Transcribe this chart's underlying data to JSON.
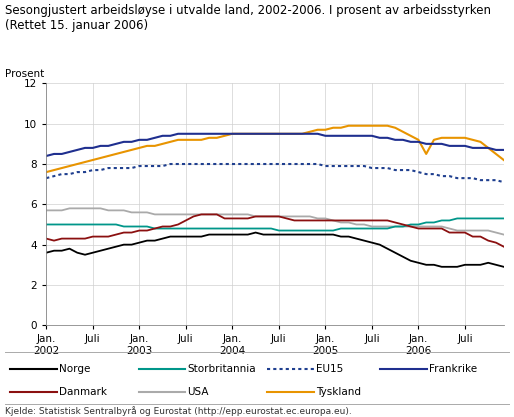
{
  "title": "Sesongjustert arbeidsløyse i utvalde land, 2002-2006. I prosent av arbeidsstyrken",
  "subtitle": "(Rettet 15. januar 2006)",
  "ylabel": "Prosent",
  "source": "Kjelde: Statistisk Sentralbyrå og Eurostat (http://epp.eurostat.ec.europa.eu).",
  "ylim": [
    0,
    12
  ],
  "yticks": [
    0,
    2,
    4,
    6,
    8,
    10,
    12
  ],
  "series": {
    "Norge": [
      3.6,
      3.7,
      3.7,
      3.8,
      3.6,
      3.5,
      3.6,
      3.7,
      3.8,
      3.9,
      4.0,
      4.0,
      4.1,
      4.2,
      4.2,
      4.3,
      4.4,
      4.4,
      4.4,
      4.4,
      4.4,
      4.5,
      4.5,
      4.5,
      4.5,
      4.5,
      4.5,
      4.6,
      4.5,
      4.5,
      4.5,
      4.5,
      4.5,
      4.5,
      4.5,
      4.5,
      4.5,
      4.5,
      4.4,
      4.4,
      4.3,
      4.2,
      4.1,
      4.0,
      3.8,
      3.6,
      3.4,
      3.2,
      3.1,
      3.0,
      3.0,
      2.9,
      2.9,
      2.9,
      3.0,
      3.0,
      3.0,
      3.1,
      3.0,
      2.9
    ],
    "Storbritannia": [
      5.0,
      5.0,
      5.0,
      5.0,
      5.0,
      5.0,
      5.0,
      5.0,
      5.0,
      5.0,
      4.9,
      4.9,
      4.9,
      4.9,
      4.8,
      4.8,
      4.8,
      4.8,
      4.8,
      4.8,
      4.8,
      4.8,
      4.8,
      4.8,
      4.8,
      4.8,
      4.8,
      4.8,
      4.8,
      4.8,
      4.7,
      4.7,
      4.7,
      4.7,
      4.7,
      4.7,
      4.7,
      4.7,
      4.8,
      4.8,
      4.8,
      4.8,
      4.8,
      4.8,
      4.8,
      4.9,
      4.9,
      5.0,
      5.0,
      5.1,
      5.1,
      5.2,
      5.2,
      5.3,
      5.3,
      5.3,
      5.3,
      5.3,
      5.3,
      5.3
    ],
    "EU15": [
      7.3,
      7.4,
      7.5,
      7.5,
      7.6,
      7.6,
      7.7,
      7.7,
      7.8,
      7.8,
      7.8,
      7.8,
      7.9,
      7.9,
      7.9,
      7.9,
      8.0,
      8.0,
      8.0,
      8.0,
      8.0,
      8.0,
      8.0,
      8.0,
      8.0,
      8.0,
      8.0,
      8.0,
      8.0,
      8.0,
      8.0,
      8.0,
      8.0,
      8.0,
      8.0,
      8.0,
      7.9,
      7.9,
      7.9,
      7.9,
      7.9,
      7.9,
      7.8,
      7.8,
      7.8,
      7.7,
      7.7,
      7.7,
      7.6,
      7.5,
      7.5,
      7.4,
      7.4,
      7.3,
      7.3,
      7.3,
      7.2,
      7.2,
      7.2,
      7.1
    ],
    "Frankrike": [
      8.4,
      8.5,
      8.5,
      8.6,
      8.7,
      8.8,
      8.8,
      8.9,
      8.9,
      9.0,
      9.1,
      9.1,
      9.2,
      9.2,
      9.3,
      9.4,
      9.4,
      9.5,
      9.5,
      9.5,
      9.5,
      9.5,
      9.5,
      9.5,
      9.5,
      9.5,
      9.5,
      9.5,
      9.5,
      9.5,
      9.5,
      9.5,
      9.5,
      9.5,
      9.5,
      9.5,
      9.4,
      9.4,
      9.4,
      9.4,
      9.4,
      9.4,
      9.4,
      9.3,
      9.3,
      9.2,
      9.2,
      9.1,
      9.1,
      9.0,
      9.0,
      9.0,
      8.9,
      8.9,
      8.9,
      8.8,
      8.8,
      8.8,
      8.7,
      8.7
    ],
    "Danmark": [
      4.3,
      4.2,
      4.3,
      4.3,
      4.3,
      4.3,
      4.4,
      4.4,
      4.4,
      4.5,
      4.6,
      4.6,
      4.7,
      4.7,
      4.8,
      4.9,
      4.9,
      5.0,
      5.2,
      5.4,
      5.5,
      5.5,
      5.5,
      5.3,
      5.3,
      5.3,
      5.3,
      5.4,
      5.4,
      5.4,
      5.4,
      5.3,
      5.2,
      5.2,
      5.2,
      5.2,
      5.2,
      5.2,
      5.2,
      5.2,
      5.2,
      5.2,
      5.2,
      5.2,
      5.2,
      5.1,
      5.0,
      4.9,
      4.8,
      4.8,
      4.8,
      4.8,
      4.6,
      4.6,
      4.6,
      4.4,
      4.4,
      4.2,
      4.1,
      3.9
    ],
    "USA": [
      5.7,
      5.7,
      5.7,
      5.8,
      5.8,
      5.8,
      5.8,
      5.8,
      5.7,
      5.7,
      5.7,
      5.6,
      5.6,
      5.6,
      5.5,
      5.5,
      5.5,
      5.5,
      5.5,
      5.5,
      5.5,
      5.5,
      5.5,
      5.5,
      5.5,
      5.5,
      5.5,
      5.4,
      5.4,
      5.4,
      5.4,
      5.4,
      5.4,
      5.4,
      5.4,
      5.3,
      5.3,
      5.2,
      5.1,
      5.1,
      5.0,
      5.0,
      4.9,
      4.9,
      4.9,
      4.9,
      4.9,
      4.9,
      4.9,
      4.9,
      4.9,
      4.9,
      4.8,
      4.7,
      4.7,
      4.7,
      4.7,
      4.7,
      4.6,
      4.5
    ],
    "Tyskland": [
      7.6,
      7.7,
      7.8,
      7.9,
      8.0,
      8.1,
      8.2,
      8.3,
      8.4,
      8.5,
      8.6,
      8.7,
      8.8,
      8.9,
      8.9,
      9.0,
      9.1,
      9.2,
      9.2,
      9.2,
      9.2,
      9.3,
      9.3,
      9.4,
      9.5,
      9.5,
      9.5,
      9.5,
      9.5,
      9.5,
      9.5,
      9.5,
      9.5,
      9.5,
      9.6,
      9.7,
      9.7,
      9.8,
      9.8,
      9.9,
      9.9,
      9.9,
      9.9,
      9.9,
      9.9,
      9.8,
      9.6,
      9.4,
      9.2,
      8.5,
      9.2,
      9.3,
      9.3,
      9.3,
      9.3,
      9.2,
      9.1,
      8.8,
      8.5,
      8.2
    ]
  },
  "n_points": 60,
  "xtick_positions": [
    0,
    6,
    12,
    18,
    24,
    30,
    36,
    42,
    48,
    54
  ],
  "xtick_labels_top": [
    "Jan.",
    "Juli",
    "Jan.",
    "Juli",
    "Jan.",
    "Juli",
    "Jan.",
    "Juli",
    "Jan.",
    "Juli"
  ],
  "xtick_labels_bot": [
    "2002",
    "",
    "2003",
    "",
    "2004",
    "",
    "2005",
    "",
    "2006",
    ""
  ],
  "legend_row1": [
    "Norge",
    "Storbritannia",
    "EU15",
    "Frankrike"
  ],
  "legend_row2": [
    "Danmark",
    "USA",
    "Tyskland"
  ],
  "line_styles": {
    "Norge": {
      "color": "#000000",
      "lw": 1.3,
      "ls": "solid"
    },
    "Storbritannia": {
      "color": "#00968A",
      "lw": 1.3,
      "ls": "solid"
    },
    "EU15": {
      "color": "#1F3F8F",
      "lw": 1.5,
      "ls": "dotted"
    },
    "Frankrike": {
      "color": "#1F2F8F",
      "lw": 1.5,
      "ls": "solid"
    },
    "Danmark": {
      "color": "#8B1010",
      "lw": 1.3,
      "ls": "solid"
    },
    "USA": {
      "color": "#AAAAAA",
      "lw": 1.3,
      "ls": "solid"
    },
    "Tyskland": {
      "color": "#E89400",
      "lw": 1.5,
      "ls": "solid"
    }
  }
}
